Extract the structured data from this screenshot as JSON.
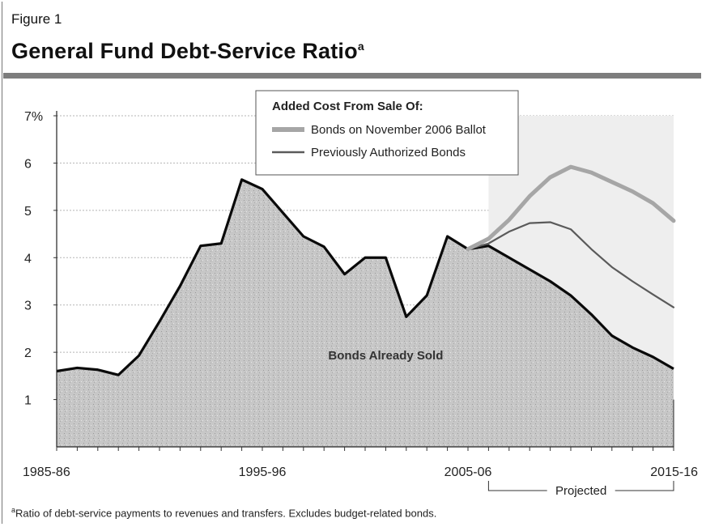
{
  "figure": {
    "label": "Figure 1",
    "title": "General Fund Debt-Service Ratio",
    "title_note_marker": "a",
    "footnote_marker": "a",
    "footnote": "Ratio of debt-service payments to revenues and transfers. Excludes budget-related bonds."
  },
  "chart_data": {
    "type": "area",
    "title": "General Fund Debt-Service Ratio",
    "xlabel": "",
    "ylabel": "",
    "x_range": [
      1985,
      2015
    ],
    "x_tick_labels": [
      {
        "x": 1985,
        "label": "1985-86"
      },
      {
        "x": 1995,
        "label": "1995-96"
      },
      {
        "x": 2005,
        "label": "2005-06"
      },
      {
        "x": 2015,
        "label": "2015-16"
      }
    ],
    "y_range": [
      0,
      7
    ],
    "y_tick_labels": [
      {
        "y": 7,
        "label": "7%"
      },
      {
        "y": 6,
        "label": "6"
      },
      {
        "y": 5,
        "label": "5"
      },
      {
        "y": 4,
        "label": "4"
      },
      {
        "y": 3,
        "label": "3"
      },
      {
        "y": 2,
        "label": "2"
      },
      {
        "y": 1,
        "label": "1"
      }
    ],
    "grid": true,
    "legend": {
      "title": "Added Cost From Sale Of:",
      "placement": "top-center",
      "items": [
        {
          "name": "Bonds on November 2006 Ballot",
          "color": "#a6a6a6"
        },
        {
          "name": "Previously Authorized Bonds",
          "color": "#5a5a5a"
        }
      ]
    },
    "series": [
      {
        "name": "",
        "label": "Bonds Already Sold",
        "style": "area",
        "color": "#c4c4c4",
        "x": [
          1985,
          1986,
          1987,
          1988,
          1989,
          1990,
          1991,
          1992,
          1993,
          1994,
          1995,
          1996,
          1997,
          1998,
          1999,
          2000,
          2001,
          2002,
          2003,
          2004,
          2005,
          2006,
          2007,
          2008,
          2009,
          2010,
          2011,
          2012,
          2013,
          2014,
          2015
        ],
        "y": [
          1.6,
          1.67,
          1.63,
          1.52,
          1.93,
          2.65,
          3.4,
          4.25,
          4.3,
          5.65,
          5.45,
          4.95,
          4.45,
          4.23,
          3.65,
          4.0,
          4.0,
          2.75,
          3.2,
          4.45,
          4.18,
          4.25,
          4.0,
          3.75,
          3.5,
          3.2,
          2.8,
          2.35,
          2.1,
          1.9,
          1.65
        ]
      },
      {
        "name": "Previously Authorized Bonds",
        "style": "line",
        "color": "#5a5a5a",
        "x": [
          2005,
          2006,
          2007,
          2008,
          2009,
          2010,
          2011,
          2012,
          2013,
          2014,
          2015
        ],
        "y": [
          4.18,
          4.3,
          4.55,
          4.73,
          4.75,
          4.6,
          4.18,
          3.8,
          3.5,
          3.22,
          2.95
        ]
      },
      {
        "name": "Bonds on November 2006 Ballot",
        "style": "line",
        "color": "#a6a6a6",
        "x": [
          2005,
          2006,
          2007,
          2008,
          2009,
          2010,
          2011,
          2012,
          2013,
          2014,
          2015
        ],
        "y": [
          4.18,
          4.4,
          4.8,
          5.3,
          5.7,
          5.92,
          5.8,
          5.6,
          5.4,
          5.15,
          4.78
        ]
      }
    ],
    "annotations": [
      {
        "text": "Bonds Already Sold",
        "x": 2001,
        "y": 1.95
      },
      {
        "text": "Projected",
        "x_start": 2006,
        "x_end": 2015,
        "y": -1.2
      }
    ]
  }
}
